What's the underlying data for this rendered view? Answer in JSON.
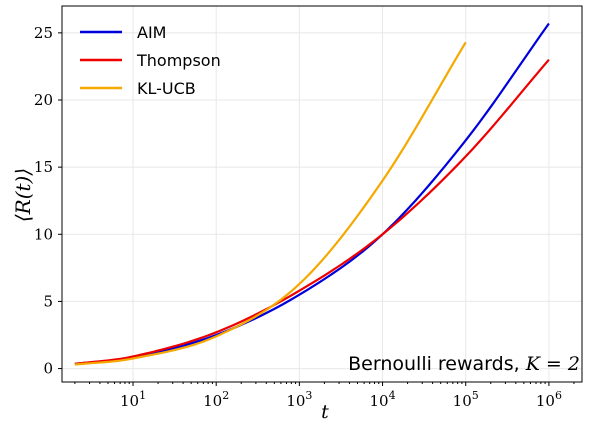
{
  "chart_data": {
    "type": "line",
    "xscale": "log",
    "xlim": [
      1.4,
      2500000
    ],
    "ylim": [
      -1,
      27
    ],
    "xticks": [
      10,
      100,
      1000,
      10000,
      100000,
      1000000
    ],
    "xtick_bases": [
      "10",
      "10",
      "10",
      "10",
      "10",
      "10"
    ],
    "xtick_exponents": [
      "1",
      "2",
      "3",
      "4",
      "5",
      "6"
    ],
    "yticks": [
      0,
      5,
      10,
      15,
      20,
      25
    ],
    "ytick_labels": [
      "0",
      "5",
      "10",
      "15",
      "20",
      "25"
    ],
    "xlabel": "t",
    "ylabel": "⟨R(t)⟩",
    "grid": true,
    "legend_position": "top-left",
    "annotation": {
      "text_main": "Bernoulli rewards, ",
      "text_math": "K = 2",
      "position": "bottom-right"
    },
    "series": [
      {
        "name": "AIM",
        "color": "#0000dd",
        "x": [
          2,
          10,
          100,
          1000,
          10000,
          100000,
          1000000
        ],
        "y": [
          0.35,
          0.85,
          2.5,
          5.5,
          10.0,
          17.0,
          25.7
        ]
      },
      {
        "name": "Thompson",
        "color": "#ee0000",
        "x": [
          2,
          10,
          100,
          1000,
          10000,
          100000,
          1000000
        ],
        "y": [
          0.35,
          0.9,
          2.7,
          5.8,
          10.0,
          15.8,
          23.0
        ]
      },
      {
        "name": "KL-UCB",
        "color": "#f5a800",
        "x": [
          2,
          10,
          100,
          1000,
          10000,
          100000
        ],
        "y": [
          0.3,
          0.75,
          2.4,
          6.3,
          14.0,
          24.3
        ]
      }
    ]
  }
}
